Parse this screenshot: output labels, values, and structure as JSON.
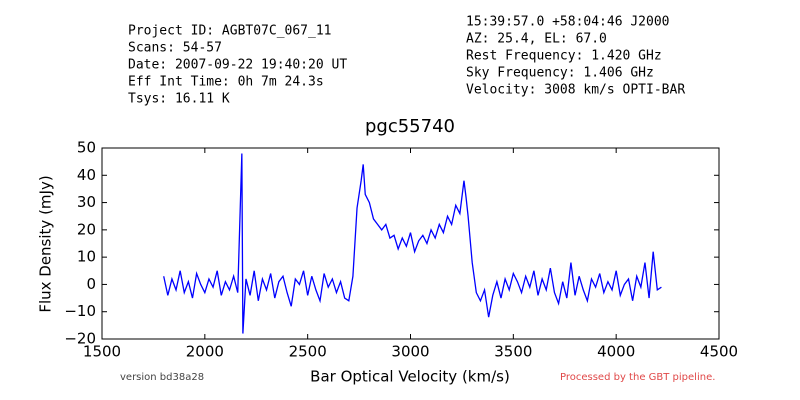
{
  "chart_data": {
    "type": "line",
    "header_left": [
      "Project ID: AGBT07C_067_11",
      "Scans: 54-57",
      "Date: 2007-09-22 19:40:20 UT",
      "Eff Int Time: 0h 7m 24.3s",
      "Tsys: 16.11 K"
    ],
    "header_right": [
      "15:39:57.0 +58:04:46 J2000",
      "AZ: 25.4, EL: 67.0",
      "Rest Frequency:   1.420 GHz",
      "Sky Frequency:    1.406 GHz",
      "Velocity: 3008 km/s OPTI-BAR"
    ],
    "title": "pgc55740",
    "xlabel": "Bar Optical Velocity (km/s)",
    "ylabel": "Flux Density (mJy)",
    "footer_left": "version bd38a28",
    "footer_right": "Processed by the GBT pipeline.",
    "xlim": [
      1500,
      4500
    ],
    "xticks": [
      1500,
      2000,
      2500,
      3000,
      3500,
      4000,
      4500
    ],
    "ylim": [
      -20,
      50
    ],
    "yticks": [
      {
        "value": -20,
        "label": "−20"
      },
      {
        "value": -10,
        "label": "−10"
      },
      0,
      10,
      20,
      30,
      40,
      50
    ],
    "series": [
      {
        "color": "#0000ff",
        "x": [
          1800,
          1820,
          1840,
          1860,
          1880,
          1900,
          1920,
          1940,
          1960,
          1980,
          2000,
          2020,
          2040,
          2060,
          2080,
          2100,
          2120,
          2140,
          2160,
          2180,
          2185,
          2200,
          2220,
          2240,
          2260,
          2280,
          2300,
          2320,
          2340,
          2360,
          2380,
          2400,
          2420,
          2440,
          2460,
          2480,
          2500,
          2520,
          2540,
          2560,
          2580,
          2600,
          2620,
          2640,
          2660,
          2680,
          2700,
          2720,
          2740,
          2760,
          2770,
          2780,
          2800,
          2820,
          2840,
          2860,
          2880,
          2900,
          2920,
          2940,
          2960,
          2980,
          3000,
          3020,
          3040,
          3060,
          3080,
          3100,
          3120,
          3140,
          3160,
          3180,
          3200,
          3220,
          3240,
          3260,
          3270,
          3280,
          3300,
          3320,
          3340,
          3360,
          3380,
          3400,
          3420,
          3440,
          3460,
          3480,
          3500,
          3520,
          3540,
          3560,
          3580,
          3600,
          3620,
          3640,
          3660,
          3680,
          3700,
          3720,
          3740,
          3760,
          3780,
          3800,
          3820,
          3840,
          3860,
          3880,
          3900,
          3920,
          3940,
          3960,
          3980,
          4000,
          4020,
          4040,
          4060,
          4080,
          4100,
          4120,
          4140,
          4160,
          4180,
          4200,
          4220
        ],
        "values": [
          3,
          -4,
          2,
          -2,
          5,
          -3,
          1,
          -5,
          4,
          0,
          -3,
          2,
          -1,
          5,
          -4,
          1,
          -2,
          3,
          -3,
          48,
          -18,
          2,
          -4,
          5,
          -6,
          2,
          -2,
          4,
          -5,
          1,
          3,
          -3,
          -8,
          2,
          0,
          5,
          -4,
          3,
          -2,
          -6,
          4,
          -1,
          2,
          -3,
          1,
          -5,
          -6,
          3,
          28,
          38,
          44,
          33,
          30,
          24,
          22,
          20,
          22,
          17,
          18,
          13,
          17,
          14,
          19,
          12,
          16,
          18,
          15,
          20,
          17,
          22,
          19,
          25,
          22,
          29,
          26,
          38,
          32,
          25,
          8,
          -3,
          -6,
          -2,
          -12,
          -4,
          1,
          -5,
          2,
          -2,
          4,
          1,
          -3,
          3,
          -1,
          5,
          -4,
          2,
          -2,
          6,
          -3,
          -7,
          1,
          -5,
          8,
          -4,
          3,
          -2,
          -6,
          2,
          -1,
          4,
          -3,
          1,
          -2,
          5,
          -4,
          0,
          2,
          -6,
          3,
          -1,
          8,
          -5,
          12,
          -2,
          -1
        ]
      }
    ]
  }
}
